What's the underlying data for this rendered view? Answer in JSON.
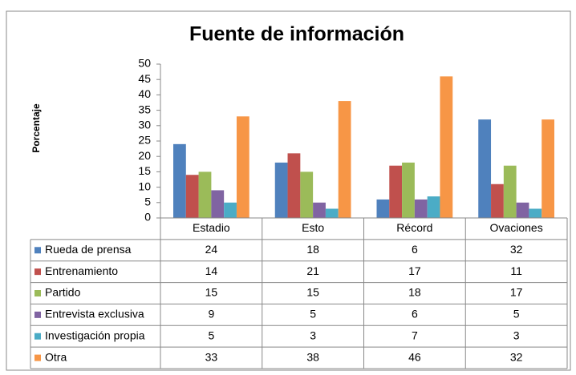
{
  "chart_data": {
    "type": "bar",
    "title": "Fuente de información",
    "y_label": "Porcentaje",
    "categories": [
      "Estadio",
      "Esto",
      "Récord",
      "Ovaciones"
    ],
    "series": [
      {
        "name": "Rueda de prensa",
        "color": "#4f81bd",
        "values": [
          24,
          18,
          6,
          32
        ]
      },
      {
        "name": "Entrenamiento",
        "color": "#c0504d",
        "values": [
          14,
          21,
          17,
          11
        ]
      },
      {
        "name": "Partido",
        "color": "#9bbb59",
        "values": [
          15,
          15,
          18,
          17
        ]
      },
      {
        "name": "Entrevista exclusiva",
        "color": "#8064a2",
        "values": [
          9,
          5,
          6,
          5
        ]
      },
      {
        "name": "Investigación propia",
        "color": "#4bacc6",
        "values": [
          5,
          3,
          7,
          3
        ]
      },
      {
        "name": "Otra",
        "color": "#f79646",
        "values": [
          33,
          38,
          46,
          32
        ]
      }
    ],
    "ylim": [
      0,
      50
    ],
    "yticks": [
      0,
      5,
      10,
      15,
      20,
      25,
      30,
      35,
      40,
      45,
      50
    ],
    "grid": false
  }
}
